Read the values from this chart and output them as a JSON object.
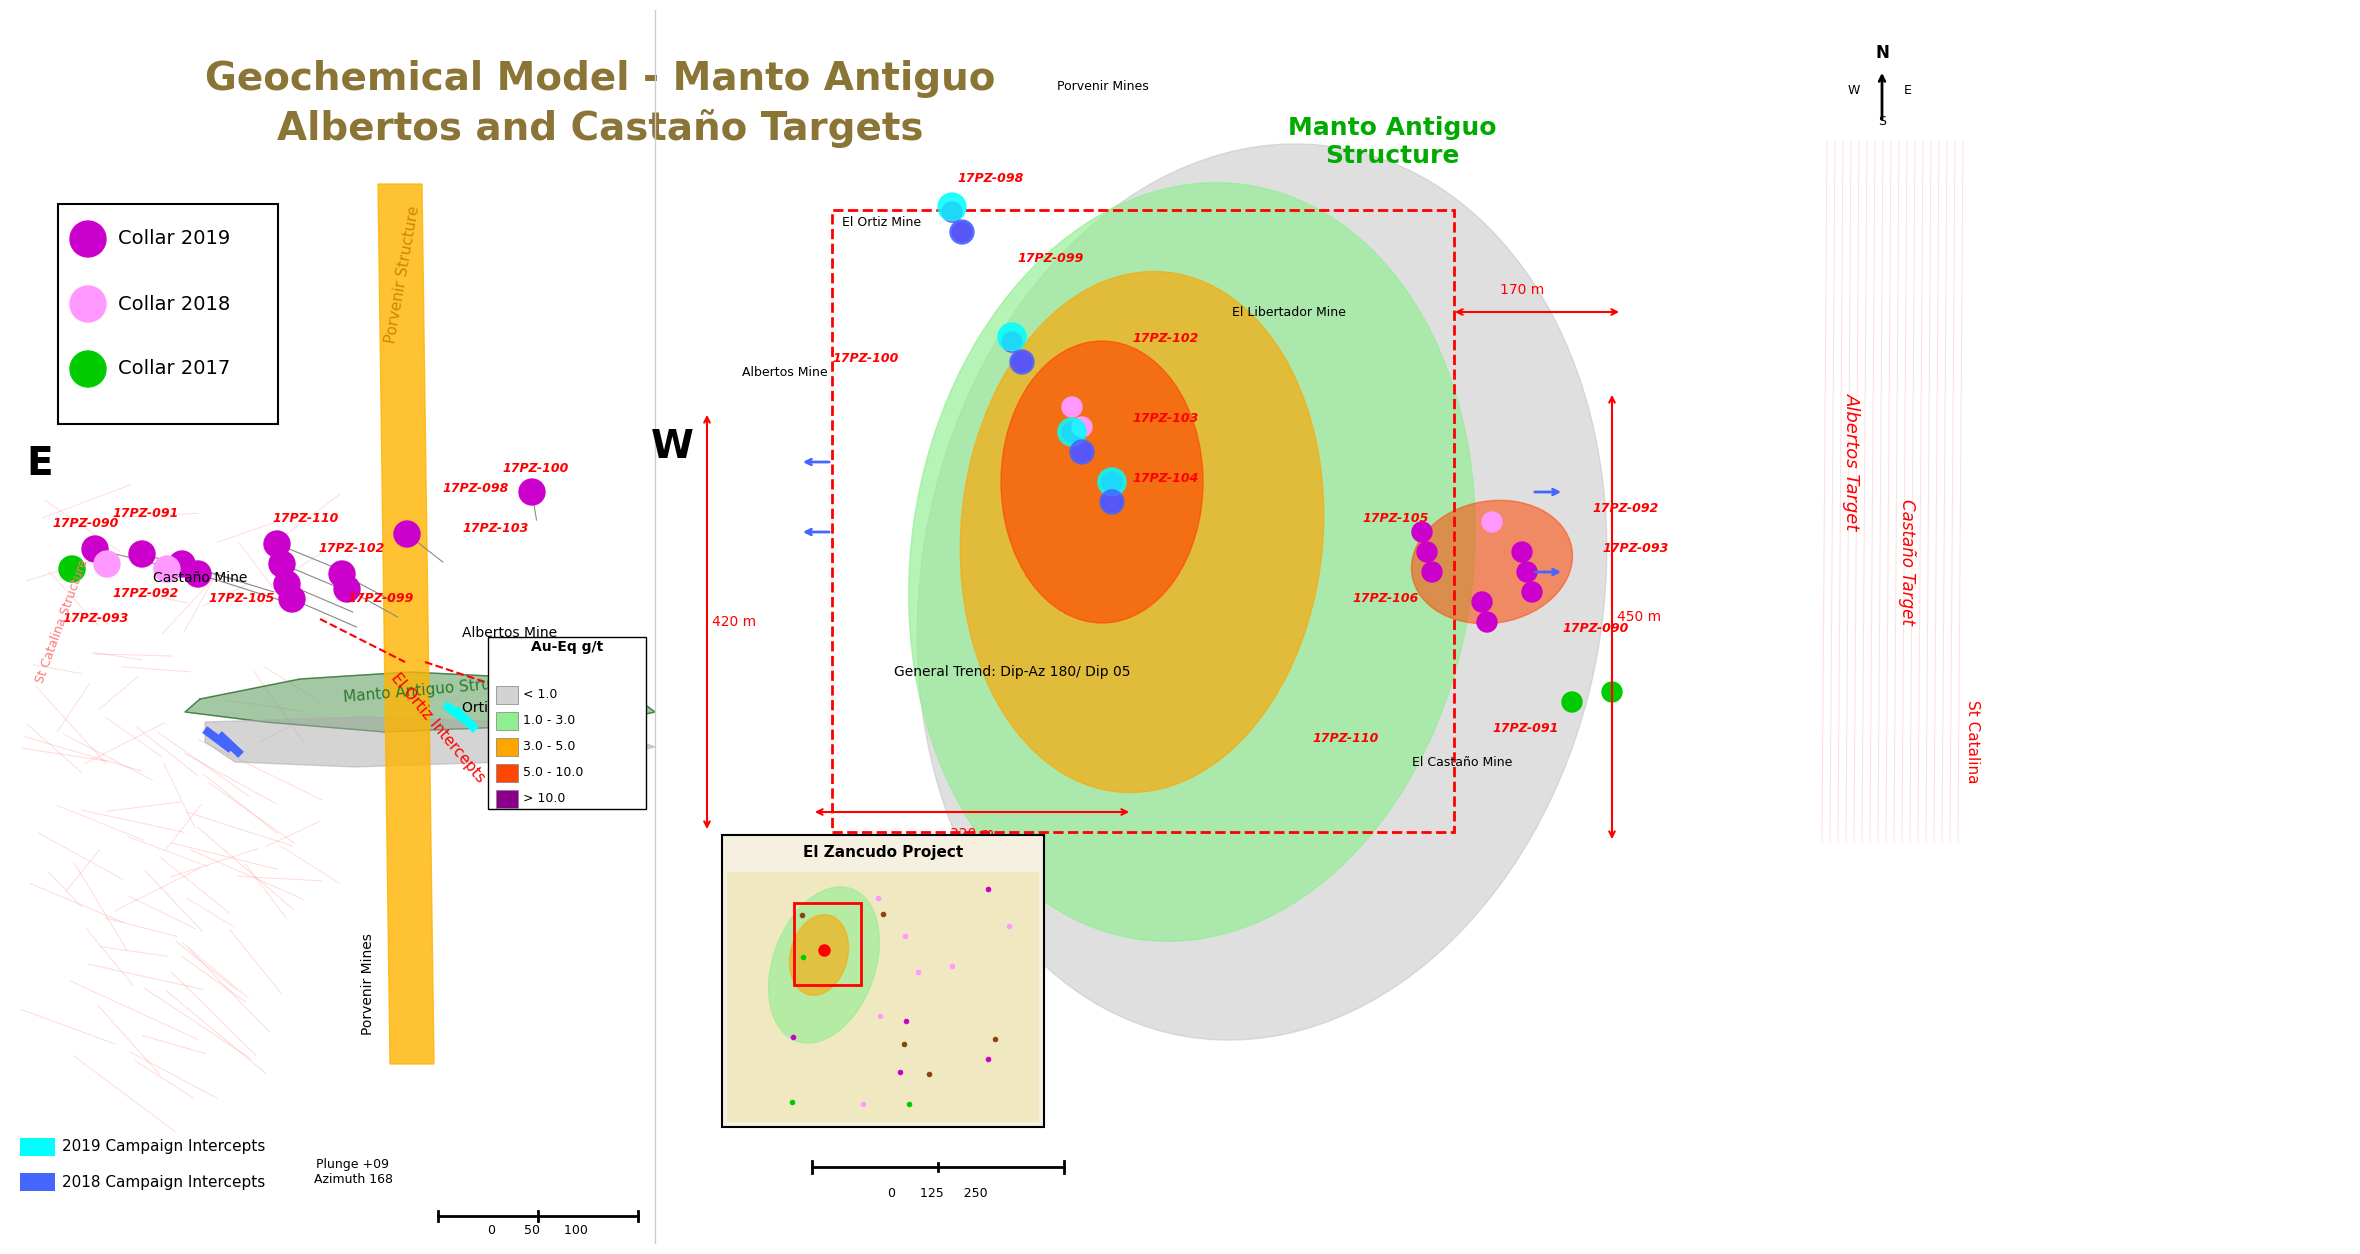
{
  "title_line1": "Geochemical Model - Manto Antiguo",
  "title_line2": "Albertos and Castaño Targets",
  "title_color": "#8B7536",
  "title_fontsize": 28,
  "bg_color": "#ffffff",
  "left_panel": {
    "label_E": "E",
    "legend_items": [
      {
        "label": "Collar 2019",
        "color": "#CC00CC"
      },
      {
        "label": "Collar 2018",
        "color": "#FF99FF"
      },
      {
        "label": "Collar 2017",
        "color": "#00CC00"
      }
    ],
    "bottom_labels": [
      "2019 Campaign Intercepts",
      "2018 Campaign Intercepts"
    ],
    "plunge_text": "Plunge +09\nAzimuth 168",
    "scale_label": "0       50      100"
  },
  "right_panel": {
    "label_W": "W",
    "title": "Manto Antiguo\nStructure",
    "title_color": "#00AA00",
    "dimension_labels": [
      "420 m",
      "170 m",
      "320 m",
      "450 m"
    ],
    "trend_label": "General Trend: Dip-Az 180/ Dip 05",
    "legend": {
      "title": "Au-Eq g/t",
      "items": [
        {
          "label": "< 1.0",
          "color": "#D3D3D3"
        },
        {
          "label": "1.0 - 3.0",
          "color": "#90EE90"
        },
        {
          "label": "3.0 - 5.0",
          "color": "#FFA500"
        },
        {
          "label": "5.0 - 10.0",
          "color": "#FF4500"
        },
        {
          "label": "> 10.0",
          "color": "#8B008B"
        }
      ]
    },
    "inset_title": "El Zancudo Project",
    "scale_label": "0      125     250"
  }
}
